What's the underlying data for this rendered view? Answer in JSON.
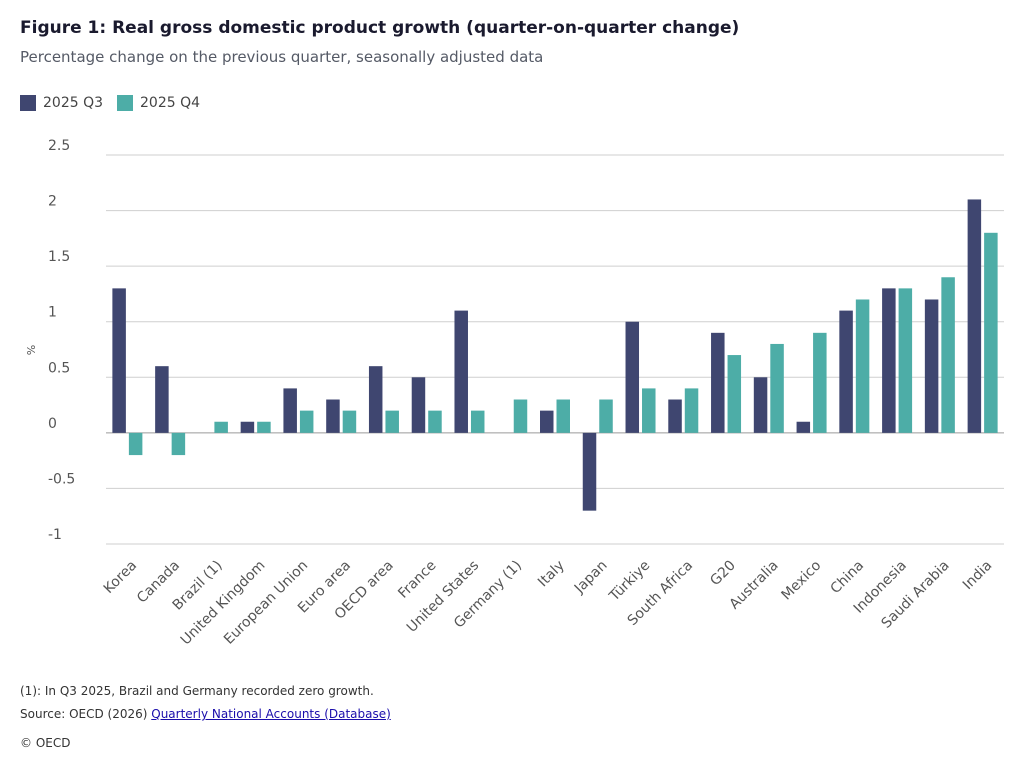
{
  "header": {
    "title": "Figure 1: Real gross domestic product growth (quarter-on-quarter change)",
    "subtitle": "Percentage change on the previous quarter, seasonally adjusted data"
  },
  "chart_data": {
    "type": "bar",
    "ylabel": "%",
    "xlabel": "",
    "ylim": [
      -1,
      2.5
    ],
    "yticks": [
      "2.5",
      "2",
      "1.5",
      "1",
      "0.5",
      "0",
      "-0.5",
      "-1"
    ],
    "legend_position": "top-left",
    "grid": true,
    "categories": [
      "Korea",
      "Canada",
      "Brazil (1)",
      "United Kingdom",
      "European Union",
      "Euro area",
      "OECD area",
      "France",
      "United States",
      "Germany (1)",
      "Italy",
      "Japan",
      "Türkiye",
      "South Africa",
      "G20",
      "Australia",
      "Mexico",
      "China",
      "Indonesia",
      "Saudi Arabia",
      "India"
    ],
    "series": [
      {
        "name": "2025 Q3",
        "color": "#3f4670",
        "values": [
          1.3,
          0.6,
          0.0,
          0.1,
          0.4,
          0.3,
          0.6,
          0.5,
          1.1,
          0.0,
          0.2,
          -0.7,
          1.0,
          0.3,
          0.9,
          0.5,
          0.1,
          1.1,
          1.3,
          1.2,
          2.1
        ]
      },
      {
        "name": "2025 Q4",
        "color": "#4dada7",
        "values": [
          -0.2,
          -0.2,
          0.1,
          0.1,
          0.2,
          0.2,
          0.2,
          0.2,
          0.2,
          0.3,
          0.3,
          0.3,
          0.4,
          0.4,
          0.7,
          0.8,
          0.9,
          1.2,
          1.3,
          1.4,
          1.8
        ]
      }
    ]
  },
  "footer": {
    "footnote": "(1): In Q3 2025, Brazil and Germany recorded zero growth.",
    "source_prefix": "Source: OECD (2026) ",
    "source_link": "Quarterly National Accounts (Database)",
    "copyright": "© OECD"
  }
}
